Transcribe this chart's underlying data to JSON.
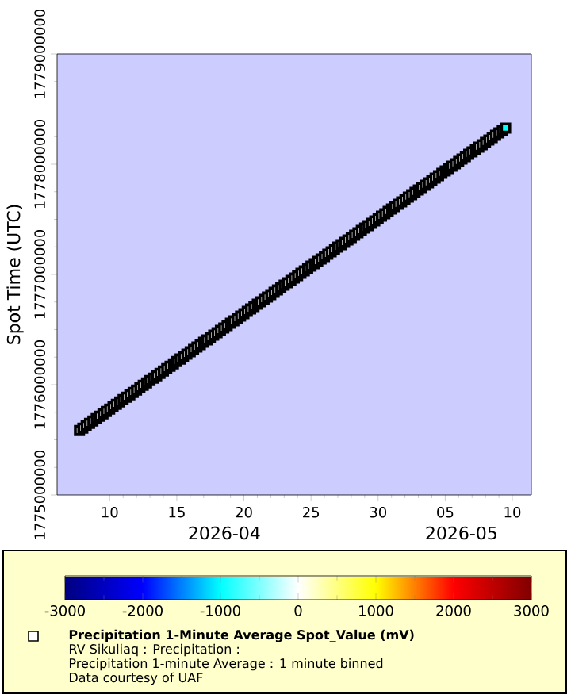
{
  "chart_data": {
    "type": "scatter",
    "ylabel": "Spot Time (UTC)",
    "xlim": [
      "2026-04-06T02:00",
      "2026-05-11T10:00"
    ],
    "xticks": [
      {
        "value": "2026-04-10",
        "label": "10"
      },
      {
        "value": "2026-04-15",
        "label": "15"
      },
      {
        "value": "2026-04-20",
        "label": "20"
      },
      {
        "value": "2026-04-25",
        "label": "25"
      },
      {
        "value": "2026-04-30",
        "label": "30"
      },
      {
        "value": "2026-05-05",
        "label": "05"
      },
      {
        "value": "2026-05-10",
        "label": "10"
      }
    ],
    "ylim": [
      1775000000,
      1779000000
    ],
    "yticks": [
      1775000000,
      1776000000,
      1777000000,
      1778000000,
      1779000000
    ],
    "clim": [
      -3000,
      3000
    ],
    "cticks": [
      -3000,
      -2000,
      -1000,
      0,
      1000,
      2000,
      3000
    ],
    "marker": "square",
    "legend": "bottom",
    "annotations": [
      "2026-04",
      "2026-05",
      "RV Sikuliaq : Precipitation :",
      "Precipitation 1-minute Average : 1 minute binned",
      "Data courtesy of UAF"
    ],
    "series": [
      {
        "name": "Precipitation 1-Minute Average Spot_Value (mV)",
        "x": [
          "2026-04-07T18:00",
          "2026-04-08T00:00",
          "2026-04-08T06:00",
          "2026-04-08T12:00",
          "2026-04-08T18:00",
          "2026-04-09T00:00",
          "2026-04-09T06:00",
          "2026-04-09T12:00",
          "2026-04-09T18:00",
          "2026-04-10T00:00",
          "2026-04-10T06:00",
          "2026-04-10T12:00",
          "2026-04-10T18:00",
          "2026-04-11T00:00",
          "2026-04-11T06:00",
          "2026-04-11T12:00",
          "2026-04-11T18:00",
          "2026-04-12T00:00",
          "2026-04-12T06:00",
          "2026-04-12T12:00",
          "2026-04-12T18:00",
          "2026-04-13T00:00",
          "2026-04-13T06:00",
          "2026-04-13T12:00",
          "2026-04-13T18:00",
          "2026-04-14T00:00",
          "2026-04-14T06:00",
          "2026-04-14T12:00",
          "2026-04-14T18:00",
          "2026-04-15T00:00",
          "2026-04-15T06:00",
          "2026-04-15T12:00",
          "2026-04-15T18:00",
          "2026-04-16T00:00",
          "2026-04-16T06:00",
          "2026-04-16T12:00",
          "2026-04-16T18:00",
          "2026-04-17T00:00",
          "2026-04-17T06:00",
          "2026-04-17T12:00",
          "2026-04-17T18:00",
          "2026-04-18T00:00",
          "2026-04-18T06:00",
          "2026-04-18T12:00",
          "2026-04-18T18:00",
          "2026-04-19T00:00",
          "2026-04-19T06:00",
          "2026-04-19T12:00",
          "2026-04-19T18:00",
          "2026-04-20T00:00",
          "2026-04-20T06:00",
          "2026-04-20T12:00",
          "2026-04-20T18:00",
          "2026-04-21T00:00",
          "2026-04-21T06:00",
          "2026-04-21T12:00",
          "2026-04-21T18:00",
          "2026-04-22T00:00",
          "2026-04-22T06:00",
          "2026-04-22T12:00",
          "2026-04-22T18:00",
          "2026-04-23T00:00",
          "2026-04-23T06:00",
          "2026-04-23T12:00",
          "2026-04-23T18:00",
          "2026-04-24T00:00",
          "2026-04-24T06:00",
          "2026-04-24T12:00",
          "2026-04-24T18:00",
          "2026-04-25T00:00",
          "2026-04-25T06:00",
          "2026-04-25T12:00",
          "2026-04-25T18:00",
          "2026-04-26T00:00",
          "2026-04-26T06:00",
          "2026-04-26T12:00",
          "2026-04-26T18:00",
          "2026-04-27T00:00",
          "2026-04-27T06:00",
          "2026-04-27T12:00",
          "2026-04-27T18:00",
          "2026-04-28T00:00",
          "2026-04-28T06:00",
          "2026-04-28T12:00",
          "2026-04-28T18:00",
          "2026-04-29T00:00",
          "2026-04-29T06:00",
          "2026-04-29T12:00",
          "2026-04-29T18:00",
          "2026-04-30T00:00",
          "2026-04-30T06:00",
          "2026-04-30T12:00",
          "2026-04-30T18:00",
          "2026-05-01T00:00",
          "2026-05-01T06:00",
          "2026-05-01T12:00",
          "2026-05-01T18:00",
          "2026-05-02T00:00",
          "2026-05-02T06:00",
          "2026-05-02T12:00",
          "2026-05-02T18:00",
          "2026-05-03T00:00",
          "2026-05-03T06:00",
          "2026-05-03T12:00",
          "2026-05-03T18:00",
          "2026-05-04T00:00",
          "2026-05-04T06:00",
          "2026-05-04T12:00",
          "2026-05-04T18:00",
          "2026-05-05T00:00",
          "2026-05-05T06:00",
          "2026-05-05T12:00",
          "2026-05-05T18:00",
          "2026-05-06T00:00",
          "2026-05-06T06:00",
          "2026-05-06T12:00",
          "2026-05-06T18:00",
          "2026-05-07T00:00",
          "2026-05-07T06:00",
          "2026-05-07T12:00",
          "2026-05-07T18:00",
          "2026-05-08T00:00",
          "2026-05-08T06:00",
          "2026-05-08T12:00",
          "2026-05-08T18:00",
          "2026-05-09T00:00",
          "2026-05-09T06:00",
          "2026-05-09T12:00"
        ],
        "values": [
          1775584800,
          1775606400,
          1775628000,
          1775649600,
          1775671200,
          1775692800,
          1775714400,
          1775736000,
          1775757600,
          1775779200,
          1775800800,
          1775822400,
          1775844000,
          1775865600,
          1775887200,
          1775908800,
          1775930400,
          1775952000,
          1775973600,
          1775995200,
          1776016800,
          1776038400,
          1776060000,
          1776081600,
          1776103200,
          1776124800,
          1776146400,
          1776168000,
          1776189600,
          1776211200,
          1776232800,
          1776254400,
          1776276000,
          1776297600,
          1776319200,
          1776340800,
          1776362400,
          1776384000,
          1776405600,
          1776427200,
          1776448800,
          1776470400,
          1776492000,
          1776513600,
          1776535200,
          1776556800,
          1776578400,
          1776600000,
          1776621600,
          1776643200,
          1776664800,
          1776686400,
          1776708000,
          1776729600,
          1776751200,
          1776772800,
          1776794400,
          1776816000,
          1776837600,
          1776859200,
          1776880800,
          1776902400,
          1776924000,
          1776945600,
          1776967200,
          1776988800,
          1777010400,
          1777032000,
          1777053600,
          1777075200,
          1777096800,
          1777118400,
          1777140000,
          1777161600,
          1777183200,
          1777204800,
          1777226400,
          1777248000,
          1777269600,
          1777291200,
          1777312800,
          1777334400,
          1777356000,
          1777377600,
          1777399200,
          1777420800,
          1777442400,
          1777464000,
          1777485600,
          1777507200,
          1777528800,
          1777550400,
          1777572000,
          1777593600,
          1777615200,
          1777636800,
          1777658400,
          1777680000,
          1777701600,
          1777723200,
          1777744800,
          1777766400,
          1777788000,
          1777809600,
          1777831200,
          1777852800,
          1777874400,
          1777896000,
          1777917600,
          1777939200,
          1777960800,
          1777982400,
          1778004000,
          1778025600,
          1778047200,
          1778068800,
          1778090400,
          1778112000,
          1778133600,
          1778155200,
          1778176800,
          1778198400,
          1778220000,
          1778241600,
          1778263200,
          1778284800,
          1778306400,
          1778328000
        ],
        "cvalues": [
          0,
          0,
          0,
          0,
          0,
          0,
          0,
          0,
          0,
          0,
          0,
          0,
          0,
          0,
          0,
          0,
          0,
          0,
          0,
          0,
          0,
          0,
          0,
          0,
          0,
          0,
          0,
          0,
          0,
          0,
          0,
          0,
          0,
          0,
          0,
          0,
          0,
          0,
          0,
          0,
          0,
          0,
          0,
          0,
          0,
          0,
          0,
          0,
          0,
          0,
          0,
          0,
          0,
          0,
          0,
          0,
          0,
          0,
          0,
          0,
          0,
          0,
          0,
          0,
          0,
          0,
          0,
          0,
          0,
          0,
          0,
          0,
          0,
          0,
          0,
          0,
          0,
          0,
          0,
          0,
          0,
          0,
          0,
          0,
          0,
          0,
          0,
          0,
          0,
          0,
          0,
          0,
          0,
          0,
          0,
          0,
          0,
          0,
          0,
          0,
          0,
          0,
          0,
          0,
          0,
          0,
          0,
          0,
          0,
          0,
          0,
          0,
          0,
          0,
          0,
          0,
          0,
          0,
          0,
          0,
          0,
          0,
          0,
          0,
          0,
          0,
          0,
          -1000
        ]
      }
    ]
  }
}
